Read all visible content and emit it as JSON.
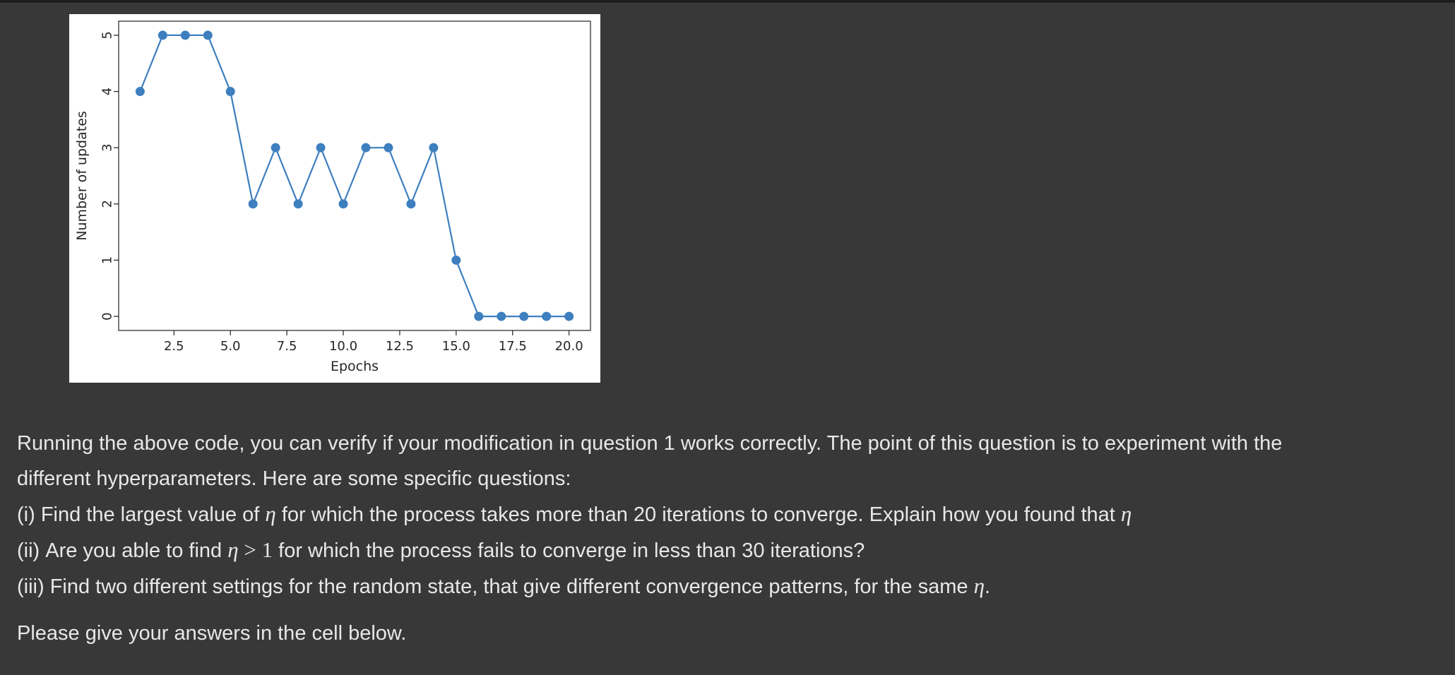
{
  "chart_data": {
    "type": "line",
    "x": [
      1,
      2,
      3,
      4,
      5,
      6,
      7,
      8,
      9,
      10,
      11,
      12,
      13,
      14,
      15,
      16,
      17,
      18,
      19,
      20
    ],
    "y": [
      4,
      5,
      5,
      5,
      4,
      2,
      3,
      2,
      3,
      2,
      3,
      3,
      2,
      3,
      1,
      0,
      0,
      0,
      0,
      0
    ],
    "xlabel": "Epochs",
    "ylabel": "Number of updates",
    "xlim": [
      0.05,
      20.95
    ],
    "ylim": [
      -0.25,
      5.25
    ],
    "xticks": [
      "2.5",
      "5.0",
      "7.5",
      "10.0",
      "12.5",
      "15.0",
      "17.5",
      "20.0"
    ],
    "xtick_values": [
      2.5,
      5.0,
      7.5,
      10.0,
      12.5,
      15.0,
      17.5,
      20.0
    ],
    "yticks": [
      "0",
      "1",
      "2",
      "3",
      "4",
      "5"
    ],
    "ytick_values": [
      0,
      1,
      2,
      3,
      4,
      5
    ],
    "marker": "circle",
    "line_color": "#3d7fbf",
    "grid": false
  },
  "text": {
    "intro_line1": "Running the above code, you can verify if your modification in question 1 works correctly. The point of this question is to experiment with the",
    "intro_line2": "different hyperparameters. Here are some specific questions:",
    "q1_pre": "(i) Find the largest value of ",
    "q1_mid": " for which the process takes more than 20 iterations to converge. Explain how you found that ",
    "q2_pre": "(ii) Are you able to find ",
    "q2_op": " > ",
    "q2_num": "1",
    "q2_post": " for which the process fails to converge in less than 30 iterations?",
    "q3_pre": "(iii) Find two different settings for the random state, that give different convergence patterns, for the same ",
    "q3_post": ".",
    "outro": "Please give your answers in the cell below.",
    "eta": "η"
  }
}
